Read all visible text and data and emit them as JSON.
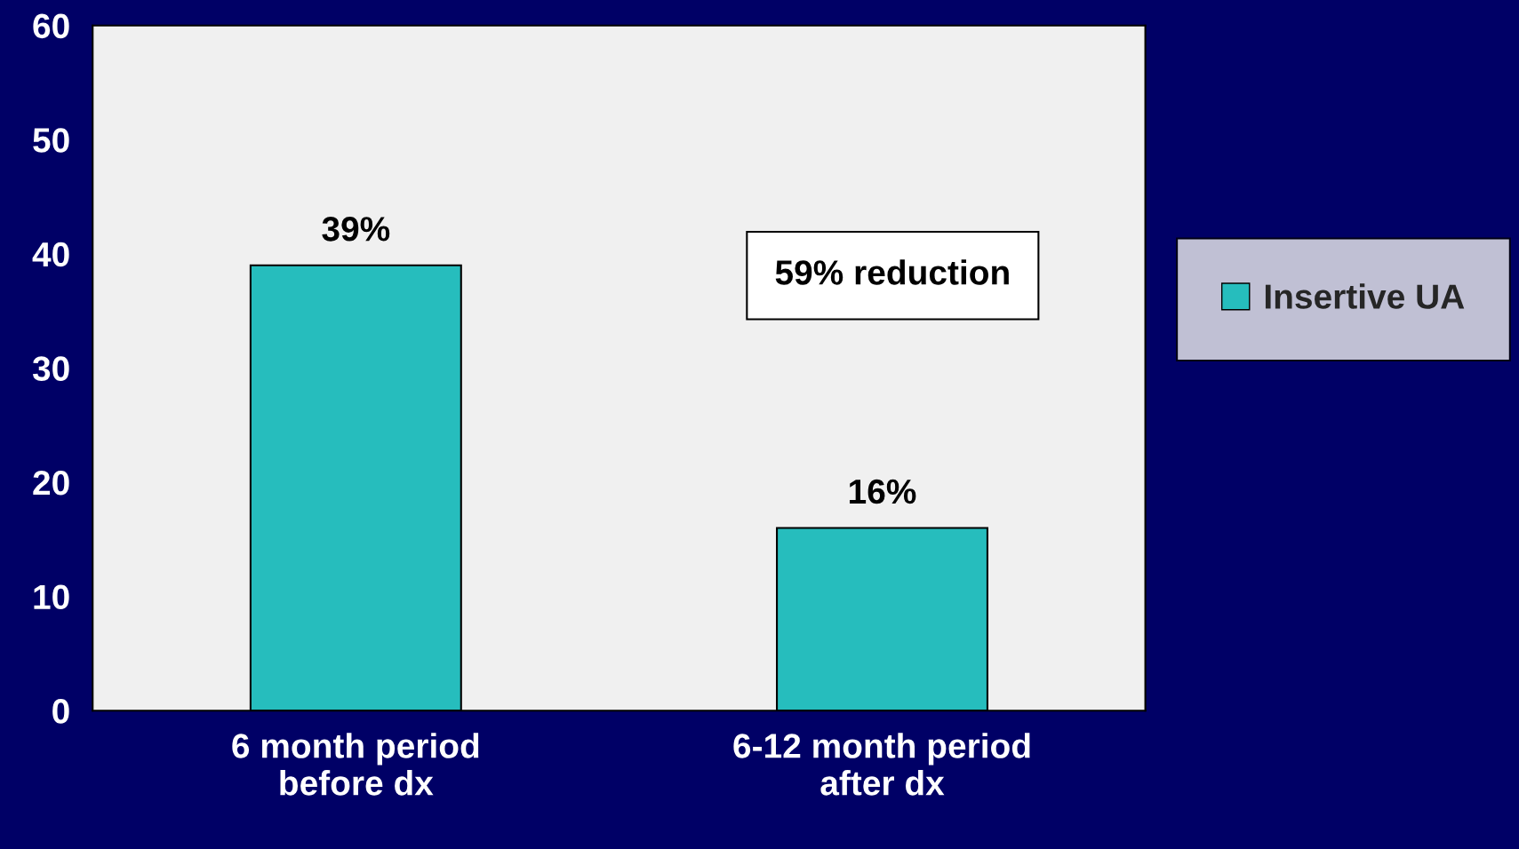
{
  "chart_data": {
    "type": "bar",
    "categories": [
      "6 month period\nbefore dx",
      "6-12 month period\nafter dx"
    ],
    "series": [
      {
        "name": "Insertive UA",
        "color": "#26bdbd",
        "values": [
          39,
          16
        ],
        "value_labels": [
          "39%",
          "16%"
        ]
      }
    ],
    "ylim": [
      0,
      60
    ],
    "yticks": [
      0,
      10,
      20,
      30,
      40,
      50,
      60
    ],
    "annotations": [
      "59% reduction"
    ],
    "grid": false,
    "legend": "right"
  }
}
